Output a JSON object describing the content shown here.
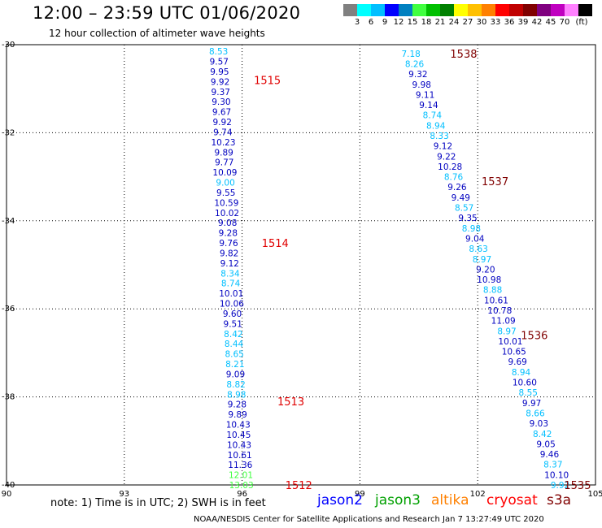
{
  "title": "12:00 – 23:59 UTC 01/06/2020",
  "subtitle": "12 hour collection of altimeter wave heights",
  "legend": {
    "units": "(ft)",
    "colors": [
      "#808080",
      "#00ffff",
      "#00bfff",
      "#0000ff",
      "#0080c0",
      "#40ff40",
      "#00c000",
      "#008000",
      "#ffff00",
      "#ffc000",
      "#ff8000",
      "#ff0000",
      "#c00000",
      "#800000",
      "#800080",
      "#c000c0",
      "#ff80ff",
      "#000000"
    ],
    "labels": [
      "3",
      "6",
      "9",
      "12",
      "15",
      "18",
      "21",
      "24",
      "27",
      "30",
      "33",
      "36",
      "39",
      "42",
      "45",
      "70"
    ]
  },
  "axes": {
    "lon_ticks": [
      "90",
      "93",
      "96",
      "99",
      "102",
      "105"
    ],
    "lat_ticks": [
      "-30",
      "-32",
      "-34",
      "-36",
      "-38",
      "-40"
    ]
  },
  "passes": [
    {
      "label": "1515",
      "lon": 96.3,
      "lat": -30.8,
      "color": "#e00000"
    },
    {
      "label": "1514",
      "lon": 96.5,
      "lat": -34.5,
      "color": "#e00000"
    },
    {
      "label": "1513",
      "lon": 96.9,
      "lat": -38.1,
      "color": "#e00000"
    },
    {
      "label": "1512",
      "lon": 97.1,
      "lat": -40.0,
      "color": "#e00000"
    },
    {
      "label": "1538",
      "lon": 101.3,
      "lat": -30.2,
      "color": "#800000"
    },
    {
      "label": "1537",
      "lon": 102.1,
      "lat": -33.1,
      "color": "#800000"
    },
    {
      "label": "1536",
      "lon": 103.1,
      "lat": -36.6,
      "color": "#800000"
    },
    {
      "label": "1535",
      "lon": 104.2,
      "lat": -40.0,
      "color": "#800000"
    }
  ],
  "tracks": [
    {
      "name": "track-west",
      "lon_start": 95.4,
      "lon_end": 95.98,
      "lat_start": -30.15,
      "lat_end": -40.0,
      "values": [
        "8.53",
        "9.57",
        "9.95",
        "9.92",
        "9.37",
        "9.30",
        "9.67",
        "9.92",
        "9.74",
        "10.23",
        "9.89",
        "9.77",
        "10.09",
        "9.00",
        "9.55",
        "10.59",
        "10.02",
        "9.08",
        "9.28",
        "9.76",
        "9.82",
        "9.12",
        "8.34",
        "8.74",
        "10.01",
        "10.06",
        "9.60",
        "9.51",
        "8.42",
        "8.44",
        "8.65",
        "8.21",
        "9.09",
        "8.82",
        "8.98",
        "9.28",
        "9.89",
        "10.43",
        "10.45",
        "10.43",
        "10.61",
        "11.36",
        "12.01",
        "13.03"
      ],
      "colors": [
        "#00bfff",
        "#0000c0",
        "#0000c0",
        "#0000c0",
        "#0000c0",
        "#0000c0",
        "#0000c0",
        "#0000c0",
        "#0000c0",
        "#0000c0",
        "#0000c0",
        "#0000c0",
        "#0000c0",
        "#00bfff",
        "#0000c0",
        "#0000c0",
        "#0000c0",
        "#0000c0",
        "#0000c0",
        "#0000c0",
        "#0000c0",
        "#0000c0",
        "#00bfff",
        "#00bfff",
        "#0000c0",
        "#0000c0",
        "#0000c0",
        "#0000c0",
        "#00bfff",
        "#00bfff",
        "#00bfff",
        "#00bfff",
        "#0000c0",
        "#00bfff",
        "#00bfff",
        "#0000c0",
        "#0000c0",
        "#0000c0",
        "#0000c0",
        "#0000c0",
        "#0000c0",
        "#0000c0",
        "#40ff40",
        "#40ff40"
      ]
    },
    {
      "name": "track-east",
      "lon_start": 100.3,
      "lon_end": 104.1,
      "lat_start": -30.2,
      "lat_end": -40.0,
      "values": [
        "7.18",
        "8.26",
        "9.32",
        "9.98",
        "9.11",
        "9.14",
        "8.74",
        "8.94",
        "8.33",
        "9.12",
        "9.22",
        "10.28",
        "8.76",
        "9.26",
        "9.49",
        "8.57",
        "9.35",
        "8.98",
        "9.04",
        "8.63",
        "8.97",
        "9.20",
        "10.98",
        "8.88",
        "10.61",
        "10.78",
        "11.09",
        "8.97",
        "10.01",
        "10.65",
        "9.69",
        "8.94",
        "10.60",
        "8.55",
        "9.97",
        "8.66",
        "9.03",
        "8.42",
        "9.05",
        "9.46",
        "8.37",
        "10.10",
        "9.92"
      ],
      "colors": [
        "#00bfff",
        "#00bfff",
        "#0000c0",
        "#0000c0",
        "#0000c0",
        "#0000c0",
        "#00bfff",
        "#00bfff",
        "#00bfff",
        "#0000c0",
        "#0000c0",
        "#0000c0",
        "#00bfff",
        "#0000c0",
        "#0000c0",
        "#00bfff",
        "#0000c0",
        "#00bfff",
        "#0000c0",
        "#00bfff",
        "#00bfff",
        "#0000c0",
        "#0000c0",
        "#00bfff",
        "#0000c0",
        "#0000c0",
        "#0000c0",
        "#00bfff",
        "#0000c0",
        "#0000c0",
        "#0000c0",
        "#00bfff",
        "#0000c0",
        "#00bfff",
        "#0000c0",
        "#00bfff",
        "#0000c0",
        "#00bfff",
        "#0000c0",
        "#0000c0",
        "#00bfff",
        "#0000c0",
        "#00bfff"
      ]
    }
  ],
  "footer": {
    "note": "note:  1) Time is in UTC;  2) SWH is in feet",
    "satellites": [
      {
        "name": "jason2",
        "color": "#0000ff"
      },
      {
        "name": "jason3",
        "color": "#00a000"
      },
      {
        "name": "altika",
        "color": "#ff8000"
      },
      {
        "name": "cryosat",
        "color": "#ff0000"
      },
      {
        "name": "s3a",
        "color": "#800000"
      }
    ],
    "credit": "NOAA/NESDIS Center for Satellite Applications and Research   Jan  7 13:27:49 UTC 2020"
  }
}
